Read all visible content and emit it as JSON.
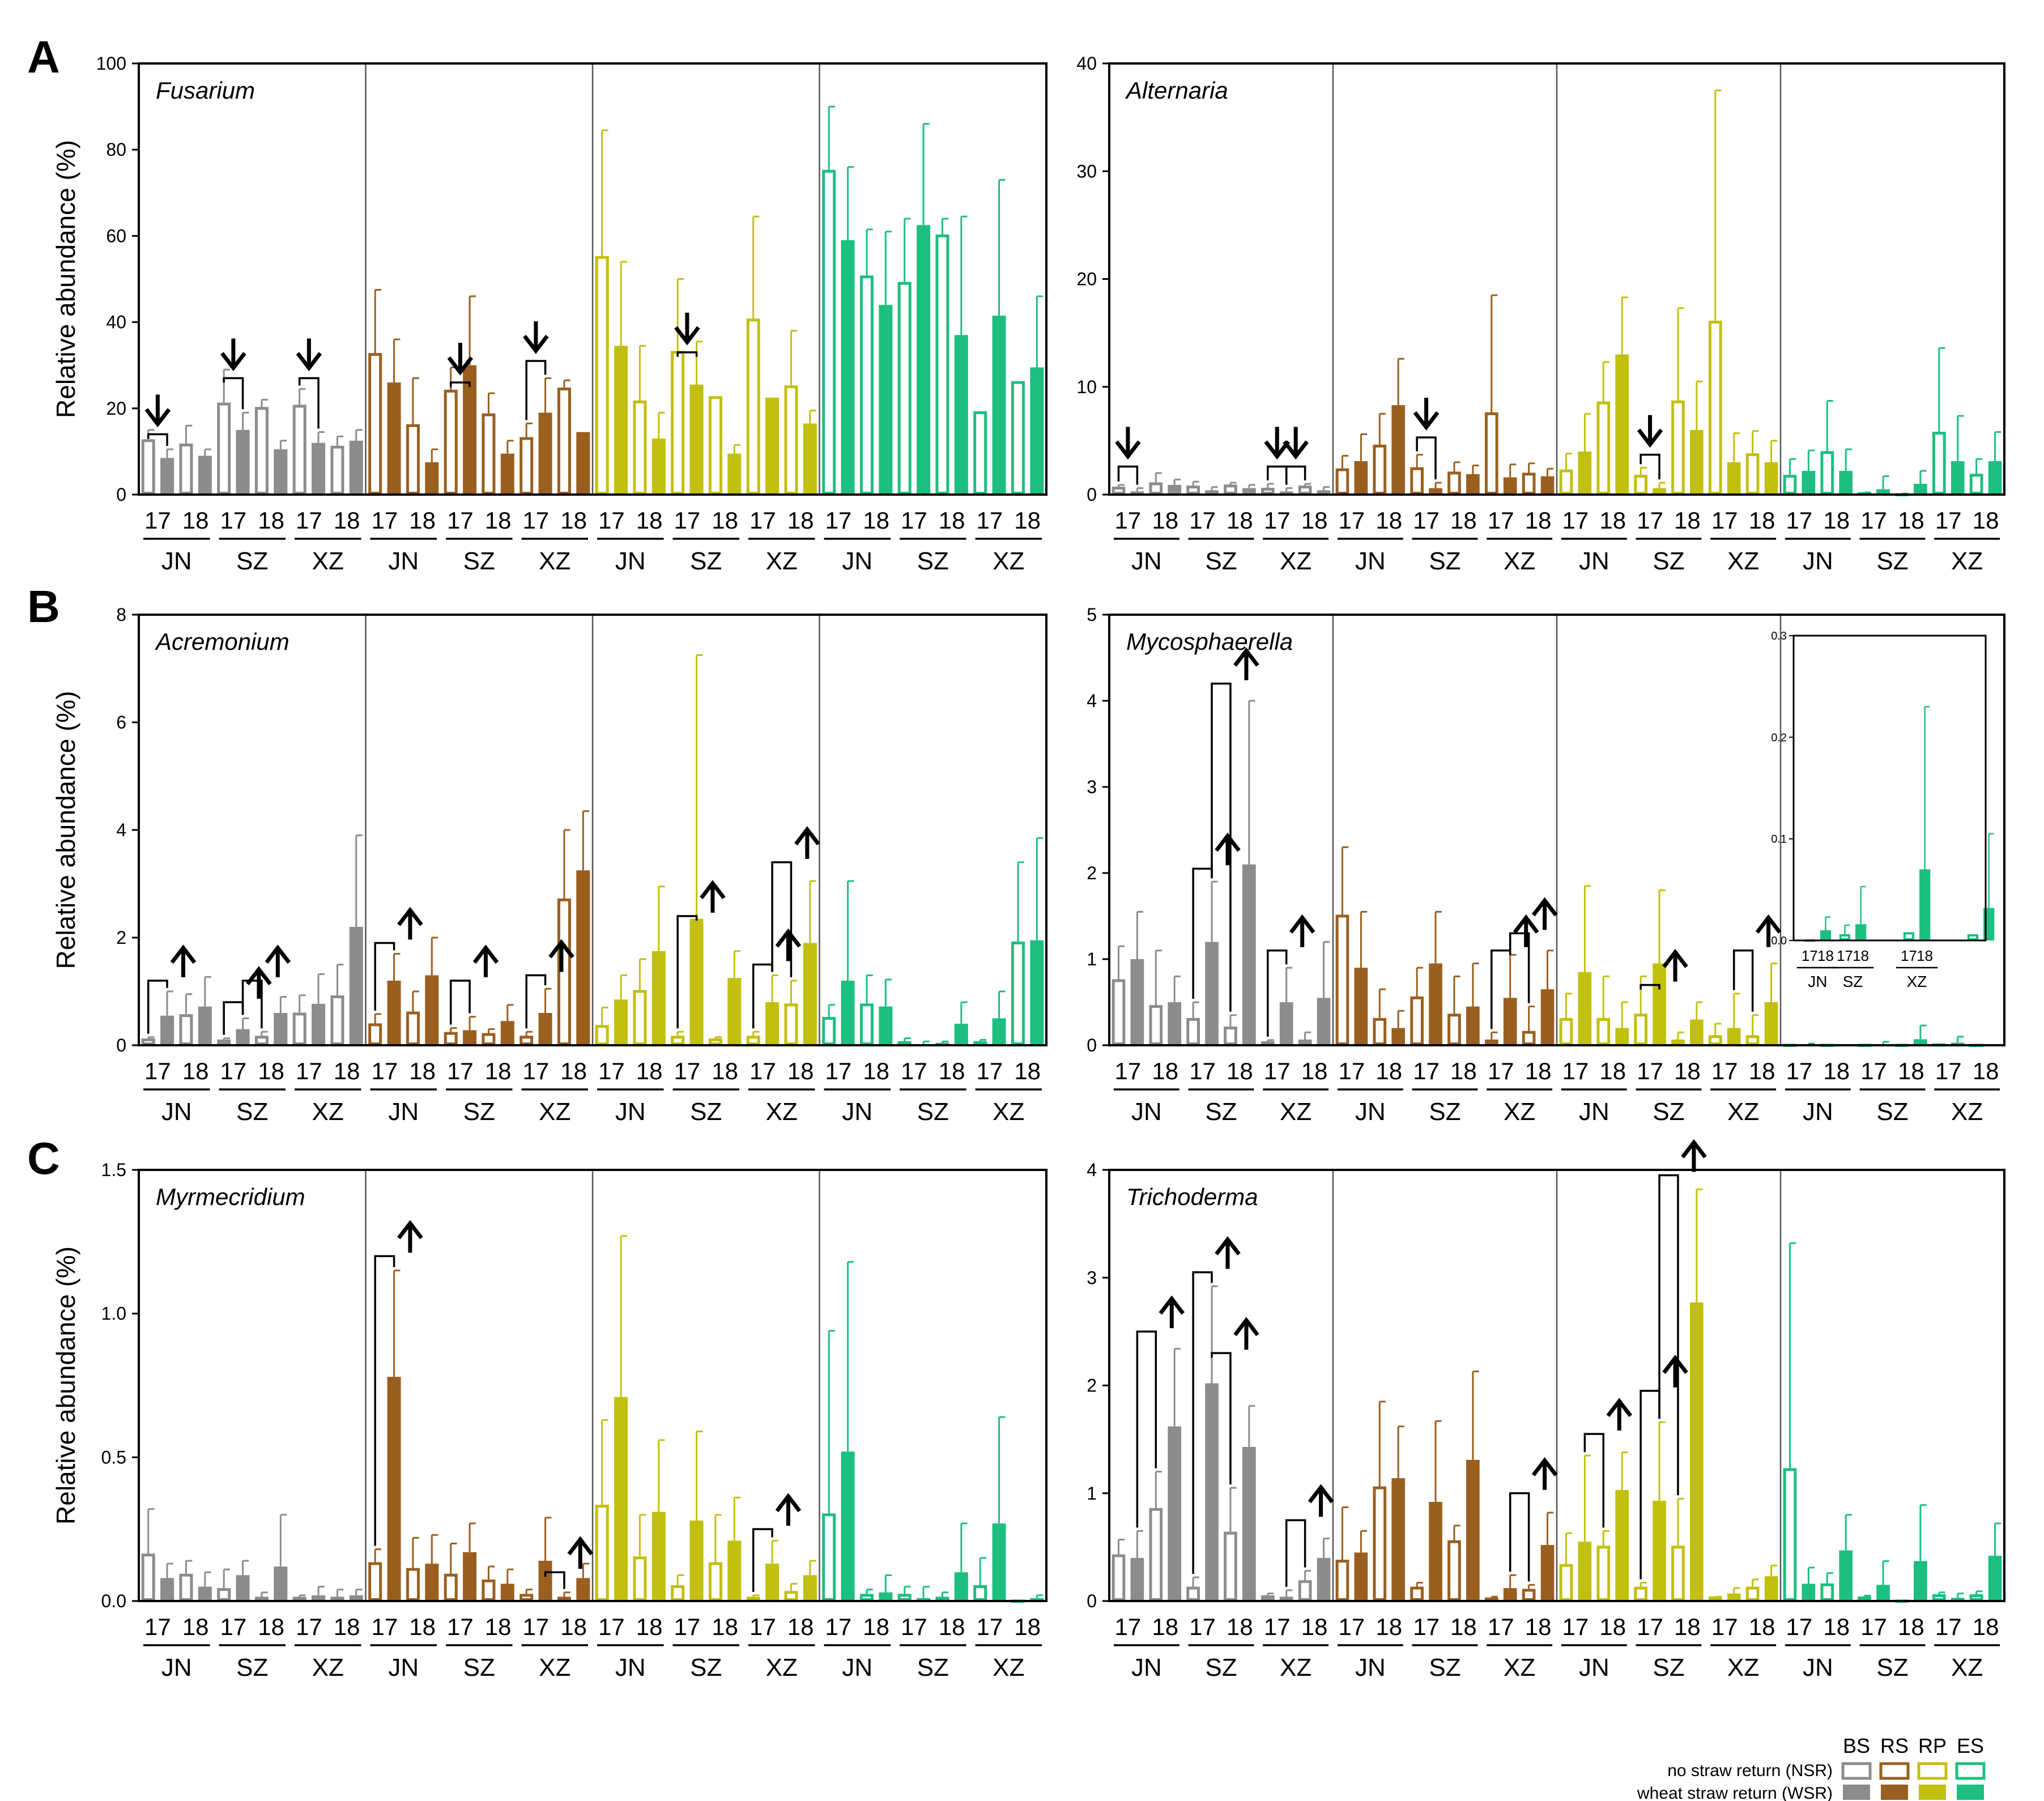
{
  "figure": {
    "letters": {
      "A": "A",
      "B": "B",
      "C": "C"
    },
    "legend": {
      "headers": [
        "BS",
        "RS",
        "RP",
        "ES"
      ],
      "nsr_label": "no straw return (NSR)",
      "wsr_label": "wheat straw return (WSR)"
    }
  },
  "colors": {
    "BS": "#8c8c8c",
    "RS": "#9a5f1f",
    "RP": "#c2c00e",
    "ES": "#1dbf80"
  },
  "chart_data": [
    {
      "type": "bar",
      "panel": "A",
      "title": "Fusarium",
      "ylabel": "Relative abundance (%)",
      "ylim": [
        0,
        100
      ],
      "yticks": [
        "0",
        "20",
        "40",
        "60",
        "80",
        "100"
      ],
      "yticks_v": [
        0,
        20,
        40,
        60,
        80,
        100
      ],
      "compartments": [
        "BS",
        "RS",
        "RP",
        "ES"
      ],
      "sites": [
        "JN",
        "SZ",
        "XZ"
      ],
      "years": [
        "17",
        "18"
      ],
      "values": [
        12.5,
        8.5,
        11.5,
        9,
        21,
        15,
        20,
        10.5,
        20.5,
        12,
        11,
        12.5,
        32.5,
        26,
        16,
        7.5,
        24,
        30,
        18.5,
        9.5,
        13,
        19,
        24.5,
        14.5,
        55,
        34.5,
        21.5,
        13,
        33,
        25.5,
        22.5,
        9.5,
        40.5,
        22.5,
        25,
        16.5,
        75,
        59,
        50.5,
        44,
        49,
        62.5,
        60,
        37,
        19,
        41.5,
        26,
        29.5
      ],
      "errors": [
        2.5,
        2,
        4.5,
        1.5,
        8,
        4,
        2,
        2,
        4,
        2.5,
        2.5,
        2.5,
        15,
        10,
        11,
        3,
        5.5,
        16,
        5,
        3,
        3.5,
        8,
        2,
        0,
        29.5,
        19.5,
        13,
        6,
        17,
        10,
        0,
        2,
        24,
        0,
        13,
        3,
        15,
        17,
        11,
        17,
        15,
        23.5,
        4,
        27.5,
        0,
        31.5,
        0,
        16.5
      ],
      "arrows": [
        {
          "cmp": 0,
          "site": 0,
          "dir": "down",
          "bracket": 14
        },
        {
          "cmp": 0,
          "site": 1,
          "dir": "down",
          "bracket": 27
        },
        {
          "cmp": 0,
          "site": 2,
          "dir": "down",
          "bracket": 27
        },
        {
          "cmp": 1,
          "site": 1,
          "dir": "down",
          "bracket": 26
        },
        {
          "cmp": 1,
          "site": 2,
          "dir": "down",
          "bracket": 31
        },
        {
          "cmp": 2,
          "site": 1,
          "dir": "down",
          "bracket": 33
        }
      ]
    },
    {
      "type": "bar",
      "panel": "A",
      "title": "Alternaria",
      "ylabel": "",
      "ylim": [
        0,
        40
      ],
      "yticks": [
        "0",
        "10",
        "20",
        "30",
        "40"
      ],
      "yticks_v": [
        0,
        10,
        20,
        30,
        40
      ],
      "compartments": [
        "BS",
        "RS",
        "RP",
        "ES"
      ],
      "sites": [
        "JN",
        "SZ",
        "XZ"
      ],
      "years": [
        "17",
        "18"
      ],
      "values": [
        0.6,
        0.3,
        1.0,
        0.9,
        0.7,
        0.4,
        0.8,
        0.6,
        0.5,
        0.3,
        0.7,
        0.4,
        2.3,
        3.1,
        4.5,
        8.3,
        2.4,
        0.6,
        2.0,
        1.9,
        7.5,
        1.6,
        1.9,
        1.7,
        2.2,
        4.0,
        8.5,
        13.0,
        1.7,
        0.6,
        8.6,
        6.0,
        16.0,
        3.0,
        3.7,
        3.0,
        1.7,
        2.2,
        3.9,
        2.2,
        0.1,
        0.5,
        0.0,
        1.0,
        5.7,
        3.1,
        1.8,
        3.1
      ],
      "errors": [
        0.3,
        0.3,
        1,
        0.5,
        0.5,
        0.3,
        0.3,
        0.3,
        0.5,
        0.3,
        0.3,
        0.3,
        1.3,
        2.5,
        3,
        4.3,
        1.3,
        0.5,
        1,
        0.8,
        11,
        1.2,
        1,
        0.7,
        1.6,
        3.5,
        3.8,
        5.3,
        0.8,
        0.5,
        8.7,
        4.5,
        21.5,
        2.7,
        2.2,
        2,
        1.6,
        1.9,
        4.8,
        2,
        0.1,
        1.2,
        0.1,
        1.2,
        7.9,
        4.2,
        1.5,
        2.7
      ],
      "arrows": [
        {
          "cmp": 0,
          "site": 0,
          "dir": "down",
          "bracket": 2.6
        },
        {
          "cmp": 0,
          "site": 2,
          "dir": "down",
          "bracket": 2.6
        },
        {
          "cmp": 0,
          "site": 2,
          "off": 1,
          "dir": "down",
          "bracket": 2.6
        },
        {
          "cmp": 1,
          "site": 1,
          "dir": "down",
          "bracket": 5.3
        },
        {
          "cmp": 2,
          "site": 1,
          "dir": "down",
          "bracket": 3.7
        }
      ]
    },
    {
      "type": "bar",
      "panel": "B",
      "title": "Acremonium",
      "ylabel": "Relative abundance (%)",
      "ylim": [
        0,
        8
      ],
      "yticks": [
        "0",
        "2",
        "4",
        "6",
        "8"
      ],
      "yticks_v": [
        0,
        2,
        4,
        6,
        8
      ],
      "compartments": [
        "BS",
        "RS",
        "RP",
        "ES"
      ],
      "sites": [
        "JN",
        "SZ",
        "XZ"
      ],
      "years": [
        "17",
        "18"
      ],
      "values": [
        0.1,
        0.55,
        0.55,
        0.72,
        0.08,
        0.3,
        0.15,
        0.6,
        0.58,
        0.77,
        0.9,
        2.2,
        0.38,
        1.2,
        0.6,
        1.3,
        0.22,
        0.28,
        0.2,
        0.45,
        0.15,
        0.6,
        2.7,
        3.25,
        0.35,
        0.85,
        1.0,
        1.75,
        0.15,
        2.35,
        0.1,
        1.25,
        0.15,
        0.8,
        0.75,
        1.9,
        0.5,
        1.2,
        0.75,
        0.72,
        0.05,
        0.02,
        0.02,
        0.4,
        0.05,
        0.5,
        1.9,
        1.95
      ],
      "errors": [
        0.05,
        0.45,
        0.4,
        0.55,
        0.05,
        0.2,
        0.1,
        0.3,
        0.35,
        0.55,
        0.6,
        1.7,
        0.2,
        0.5,
        0.4,
        0.7,
        0.1,
        0.25,
        0.1,
        0.3,
        0.1,
        0.45,
        1.3,
        1.1,
        0.35,
        0.45,
        0.6,
        1.2,
        0.1,
        4.9,
        0.05,
        0.5,
        0.1,
        0.5,
        0.45,
        1.15,
        0.25,
        1.85,
        0.55,
        0.5,
        0.08,
        0.05,
        0.05,
        0.4,
        0.05,
        0.5,
        1.5,
        1.9
      ],
      "arrows": [
        {
          "cmp": 0,
          "site": 0,
          "dir": "up",
          "bracket": 1.2
        },
        {
          "cmp": 0,
          "site": 1,
          "dir": "up",
          "bracket": 0.8
        },
        {
          "cmp": 0,
          "site": 1,
          "off": 1,
          "dir": "up",
          "bracket": 1.2
        },
        {
          "cmp": 1,
          "site": 0,
          "dir": "up",
          "bracket": 1.9
        },
        {
          "cmp": 1,
          "site": 1,
          "dir": "up",
          "bracket": 1.2
        },
        {
          "cmp": 1,
          "site": 2,
          "dir": "up",
          "bracket": 1.3
        },
        {
          "cmp": 2,
          "site": 1,
          "dir": "up",
          "bracket": 2.4
        },
        {
          "cmp": 2,
          "site": 2,
          "dir": "up",
          "bracket": 1.5
        },
        {
          "cmp": 2,
          "site": 2,
          "off": 1,
          "dir": "up",
          "bracket": 3.4
        }
      ]
    },
    {
      "type": "bar",
      "panel": "B",
      "title": "Mycosphaerella",
      "ylabel": "",
      "ylim": [
        0,
        5
      ],
      "yticks": [
        "0",
        "1",
        "2",
        "3",
        "4",
        "5"
      ],
      "yticks_v": [
        0,
        1,
        2,
        3,
        4,
        5
      ],
      "compartments": [
        "BS",
        "RS",
        "RP",
        "ES"
      ],
      "sites": [
        "JN",
        "SZ",
        "XZ"
      ],
      "years": [
        "17",
        "18"
      ],
      "values": [
        0.75,
        1.0,
        0.45,
        0.5,
        0.3,
        1.2,
        0.2,
        2.1,
        0.03,
        0.5,
        0.05,
        0.55,
        1.5,
        0.9,
        0.3,
        0.2,
        0.55,
        0.95,
        0.35,
        0.45,
        0.05,
        0.55,
        0.15,
        0.65,
        0.3,
        0.85,
        0.3,
        0.2,
        0.35,
        0.95,
        0.05,
        0.3,
        0.1,
        0.2,
        0.1,
        0.5,
        0.0,
        0.01,
        0.0,
        0.0,
        0.0,
        0.01,
        0.0,
        0.07,
        0.005,
        0.03,
        0.0,
        0.0
      ],
      "errors": [
        0.4,
        0.55,
        0.65,
        0.3,
        0.2,
        0.7,
        0.15,
        1.9,
        0.03,
        0.4,
        0.1,
        0.65,
        0.8,
        0.65,
        0.35,
        0.2,
        0.35,
        0.6,
        0.45,
        0.5,
        0.1,
        0.5,
        0.3,
        0.45,
        0.3,
        1.0,
        0.5,
        0.3,
        0.45,
        0.85,
        0.1,
        0.2,
        0.15,
        0.4,
        0.25,
        0.45,
        0.0,
        0.01,
        0.0,
        0.0,
        0.0,
        0.03,
        0.0,
        0.16,
        0.005,
        0.07,
        0.0,
        0.0
      ],
      "arrows": [
        {
          "cmp": 0,
          "site": 1,
          "dir": "up",
          "bracket": 2.05
        },
        {
          "cmp": 0,
          "site": 1,
          "off": 1,
          "dir": "up",
          "bracket": 4.2
        },
        {
          "cmp": 0,
          "site": 2,
          "dir": "up",
          "bracket": 1.1
        },
        {
          "cmp": 1,
          "site": 2,
          "dir": "up",
          "bracket": 1.1
        },
        {
          "cmp": 1,
          "site": 2,
          "off": 1,
          "dir": "up",
          "bracket": 1.3
        },
        {
          "cmp": 2,
          "site": 1,
          "dir": "up",
          "bracket": 0.7
        },
        {
          "cmp": 2,
          "site": 2,
          "off": 1,
          "dir": "up",
          "bracket": 1.1
        }
      ],
      "inset": {
        "ylim": [
          0,
          0.3
        ],
        "yticks": [
          "0.0",
          "0.1",
          "0.2",
          "0.3"
        ],
        "yticks_v": [
          0,
          0.1,
          0.2,
          0.3
        ],
        "sites": [
          "JN",
          "SZ",
          "XZ"
        ],
        "years": [
          "17",
          "18"
        ],
        "values": [
          0.0,
          0.01,
          0.005,
          0.016,
          0.007,
          0.07,
          0.005,
          0.032
        ],
        "errors": [
          0.0,
          0.013,
          0.01,
          0.037,
          0.0,
          0.16,
          0.0,
          0.073
        ]
      }
    },
    {
      "type": "bar",
      "panel": "C",
      "title": "Myrmecridium",
      "ylabel": "Relative abundance (%)",
      "ylim": [
        0,
        1.5
      ],
      "yticks": [
        "0.0",
        "0.5",
        "1.0",
        "1.5"
      ],
      "yticks_v": [
        0,
        0.5,
        1.0,
        1.5
      ],
      "compartments": [
        "BS",
        "RS",
        "RP",
        "ES"
      ],
      "sites": [
        "JN",
        "SZ",
        "XZ"
      ],
      "years": [
        "17",
        "18"
      ],
      "values": [
        0.16,
        0.08,
        0.09,
        0.05,
        0.04,
        0.09,
        0.01,
        0.12,
        0.01,
        0.02,
        0.01,
        0.02,
        0.13,
        0.78,
        0.11,
        0.13,
        0.09,
        0.17,
        0.07,
        0.06,
        0.02,
        0.14,
        0.01,
        0.08,
        0.33,
        0.71,
        0.15,
        0.31,
        0.05,
        0.28,
        0.13,
        0.21,
        0.01,
        0.13,
        0.03,
        0.09,
        0.3,
        0.52,
        0.02,
        0.03,
        0.02,
        0.01,
        0.01,
        0.1,
        0.05,
        0.27,
        0.0,
        0.01
      ],
      "errors": [
        0.16,
        0.05,
        0.05,
        0.05,
        0.07,
        0.05,
        0.02,
        0.18,
        0.01,
        0.03,
        0.03,
        0.02,
        0.05,
        0.37,
        0.11,
        0.1,
        0.11,
        0.1,
        0.05,
        0.05,
        0.02,
        0.15,
        0.02,
        0.05,
        0.3,
        0.56,
        0.15,
        0.25,
        0.04,
        0.31,
        0.17,
        0.15,
        0.01,
        0.08,
        0.03,
        0.05,
        0.64,
        0.66,
        0.02,
        0.06,
        0.03,
        0.04,
        0.02,
        0.17,
        0.1,
        0.37,
        0.0,
        0.01
      ],
      "arrows": [
        {
          "cmp": 1,
          "site": 0,
          "dir": "up",
          "bracket": 1.2
        },
        {
          "cmp": 1,
          "site": 2,
          "off": 1,
          "dir": "up",
          "bracket": 0.1
        },
        {
          "cmp": 2,
          "site": 2,
          "dir": "up",
          "bracket": 0.25
        }
      ]
    },
    {
      "type": "bar",
      "panel": "C",
      "title": "Trichoderma",
      "ylabel": "",
      "ylim": [
        0,
        4
      ],
      "yticks": [
        "0",
        "1",
        "2",
        "3",
        "4"
      ],
      "yticks_v": [
        0,
        1,
        2,
        3,
        4
      ],
      "compartments": [
        "BS",
        "RS",
        "RP",
        "ES"
      ],
      "sites": [
        "JN",
        "SZ",
        "XZ"
      ],
      "years": [
        "17",
        "18"
      ],
      "values": [
        0.42,
        0.4,
        0.85,
        1.62,
        0.12,
        2.02,
        0.63,
        1.43,
        0.04,
        0.04,
        0.18,
        0.4,
        0.37,
        0.45,
        1.05,
        1.14,
        0.12,
        0.92,
        0.55,
        1.31,
        0.02,
        0.12,
        0.1,
        0.52,
        0.33,
        0.55,
        0.5,
        1.03,
        0.12,
        0.93,
        0.5,
        2.77,
        0.03,
        0.07,
        0.12,
        0.23,
        1.22,
        0.16,
        0.15,
        0.47,
        0.03,
        0.15,
        0.0,
        0.37,
        0.05,
        0.03,
        0.05,
        0.42
      ],
      "errors": [
        0.15,
        0.25,
        0.35,
        0.72,
        0.1,
        0.9,
        0.42,
        0.38,
        0.03,
        0.06,
        0.1,
        0.18,
        0.5,
        0.2,
        0.8,
        0.48,
        0.05,
        0.75,
        0.15,
        0.82,
        0.02,
        0.12,
        0.05,
        0.3,
        0.3,
        0.8,
        0.15,
        0.35,
        0.05,
        0.73,
        0.45,
        1.05,
        0.01,
        0.05,
        0.08,
        0.1,
        2.1,
        0.15,
        0.11,
        0.33,
        0.02,
        0.22,
        0.0,
        0.52,
        0.03,
        0.04,
        0.04,
        0.3
      ],
      "arrows": [
        {
          "cmp": 0,
          "site": 0,
          "off": 1,
          "dir": "up",
          "bracket": 2.5
        },
        {
          "cmp": 0,
          "site": 1,
          "dir": "up",
          "bracket": 3.05
        },
        {
          "cmp": 0,
          "site": 1,
          "off": 1,
          "dir": "up",
          "bracket": 2.3
        },
        {
          "cmp": 0,
          "site": 2,
          "off": 1,
          "dir": "up",
          "bracket": 0.75
        },
        {
          "cmp": 1,
          "site": 2,
          "off": 1,
          "dir": "up",
          "bracket": 1.0
        },
        {
          "cmp": 2,
          "site": 0,
          "off": 1,
          "dir": "up",
          "bracket": 1.55
        },
        {
          "cmp": 2,
          "site": 1,
          "dir": "up",
          "bracket": 1.95
        },
        {
          "cmp": 2,
          "site": 1,
          "off": 1,
          "dir": "up",
          "bracket": 3.95
        }
      ]
    }
  ]
}
